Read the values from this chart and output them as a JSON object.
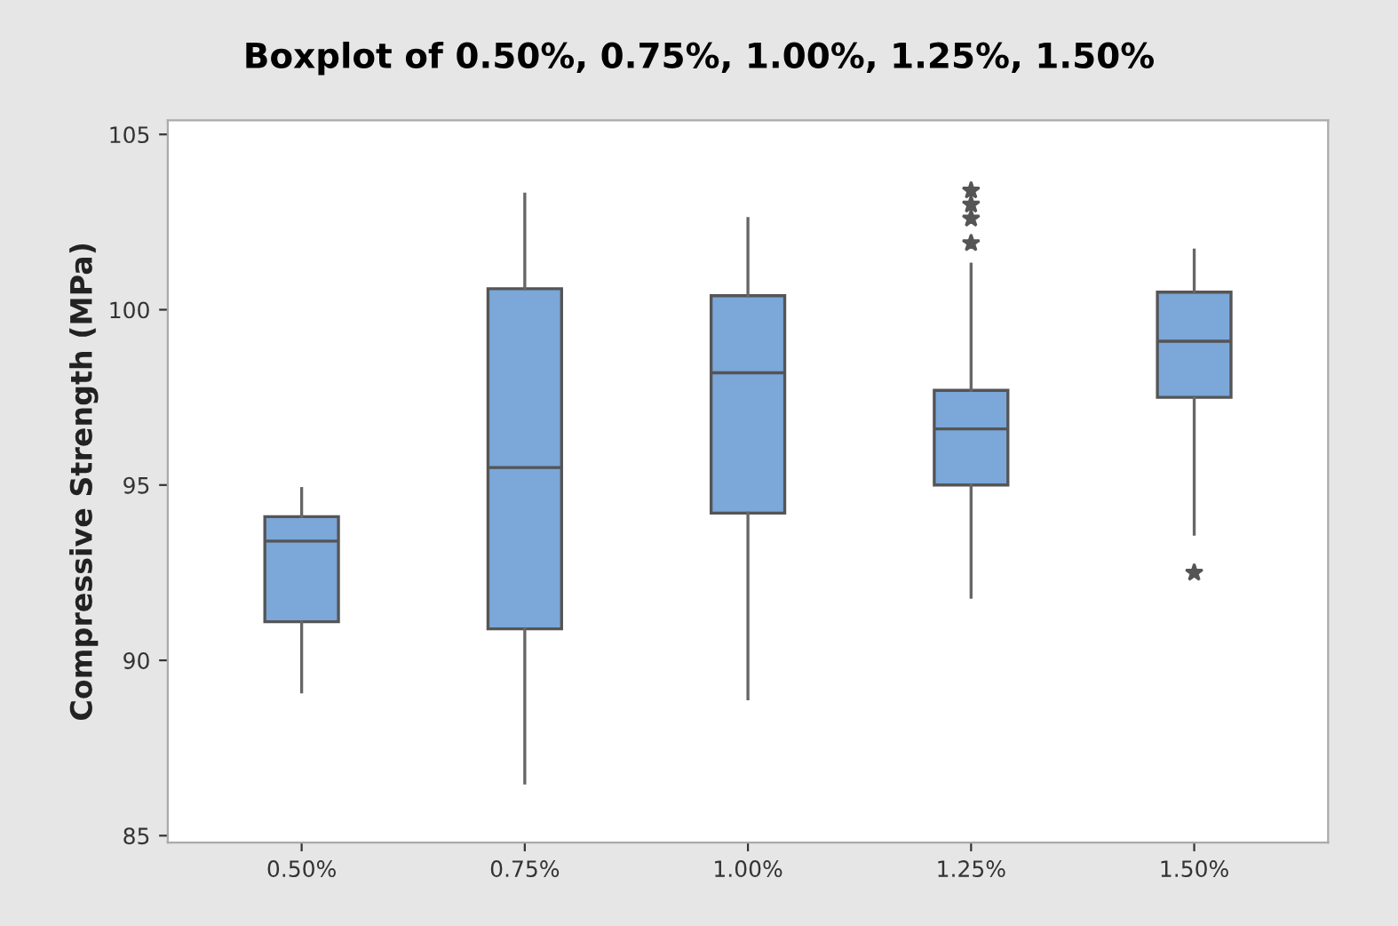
{
  "chart_data": {
    "type": "box",
    "title": "Boxplot of 0.50%, 0.75%, 1.00%, 1.25%, 1.50%",
    "ylabel": "Compressive Strength (MPa)",
    "categories": [
      "0.50%",
      "0.75%",
      "1.00%",
      "1.25%",
      "1.50%"
    ],
    "color": "#7ba7d9",
    "boxes": [
      {
        "low": 89.1,
        "q1": 91.1,
        "median": 93.4,
        "q3": 94.1,
        "high": 94.9
      },
      {
        "low": 86.5,
        "q1": 90.9,
        "median": 95.5,
        "q3": 100.6,
        "high": 103.3
      },
      {
        "low": 88.9,
        "q1": 94.2,
        "median": 98.2,
        "q3": 100.4,
        "high": 102.6
      },
      {
        "low": 91.8,
        "q1": 95.0,
        "median": 96.6,
        "q3": 97.7,
        "high": 101.3,
        "outliers": [
          101.9,
          102.6,
          103.0,
          103.4
        ]
      },
      {
        "low": 93.6,
        "q1": 97.5,
        "median": 99.1,
        "q3": 100.5,
        "high": 101.7,
        "outliers": [
          92.5
        ]
      }
    ],
    "ylim": [
      84.8,
      105.4
    ],
    "yticks": [
      85,
      90,
      95,
      100,
      105
    ],
    "grid": false,
    "marker": "star"
  }
}
